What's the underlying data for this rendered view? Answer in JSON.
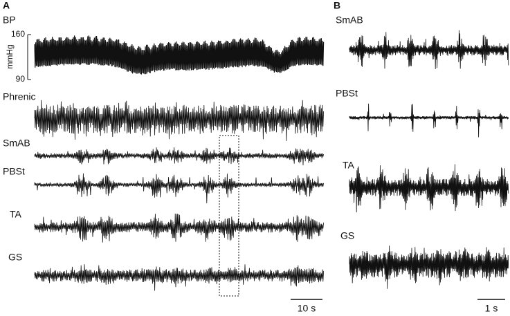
{
  "panels": [
    {
      "label": "A",
      "bp_axis": {
        "unit": "mmHg",
        "ticks": [
          160,
          90
        ]
      },
      "traces": [
        "BP",
        "Phrenic",
        "SmAB",
        "PBSt",
        "TA",
        "GS"
      ],
      "scale_bar": "10 s"
    },
    {
      "label": "B",
      "traces": [
        "SmAB",
        "PBSt",
        "TA",
        "GS"
      ],
      "scale_bar": "1 s"
    }
  ]
}
